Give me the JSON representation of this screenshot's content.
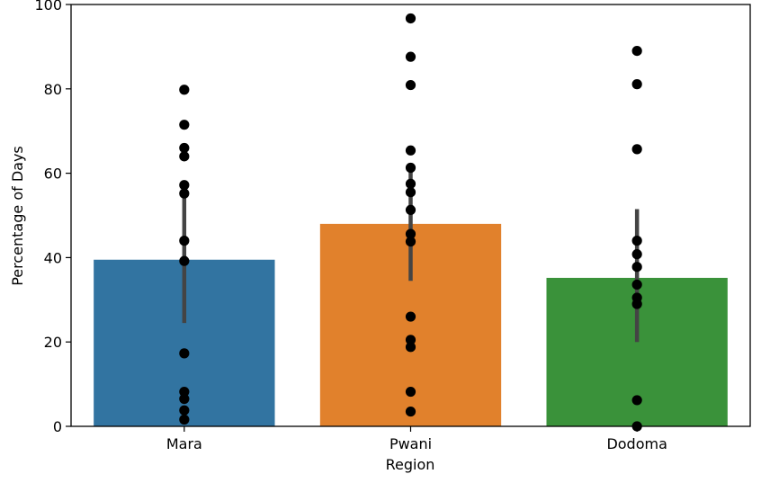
{
  "chart_data": {
    "type": "bar",
    "title": "",
    "xlabel": "Region",
    "ylabel": "Percentage of Days",
    "ylim": [
      0,
      100
    ],
    "yticks": [
      0,
      20,
      40,
      60,
      80,
      100
    ],
    "categories": [
      "Mara",
      "Pwani",
      "Dodoma"
    ],
    "colors": [
      "#3274a1",
      "#e1812c",
      "#3a923a"
    ],
    "point_color": "#000000",
    "errorbar_color": "#444444",
    "values": [
      39.5,
      48.0,
      35.2
    ],
    "error_ranges": [
      [
        24.5,
        54.5
      ],
      [
        34.5,
        61.0
      ],
      [
        20.0,
        51.5
      ]
    ],
    "points": [
      [
        79.8,
        71.5,
        66.0,
        64.0,
        57.2,
        55.2,
        44.0,
        39.2,
        17.3,
        8.2,
        6.5,
        3.8,
        1.6
      ],
      [
        96.7,
        87.6,
        80.9,
        65.4,
        61.3,
        57.5,
        55.5,
        51.3,
        45.6,
        43.8,
        26.0,
        20.5,
        18.8,
        8.2,
        3.5
      ],
      [
        89.0,
        81.1,
        65.7,
        44.0,
        40.8,
        37.8,
        33.6,
        30.5,
        29.0,
        6.2,
        0.0
      ]
    ]
  }
}
